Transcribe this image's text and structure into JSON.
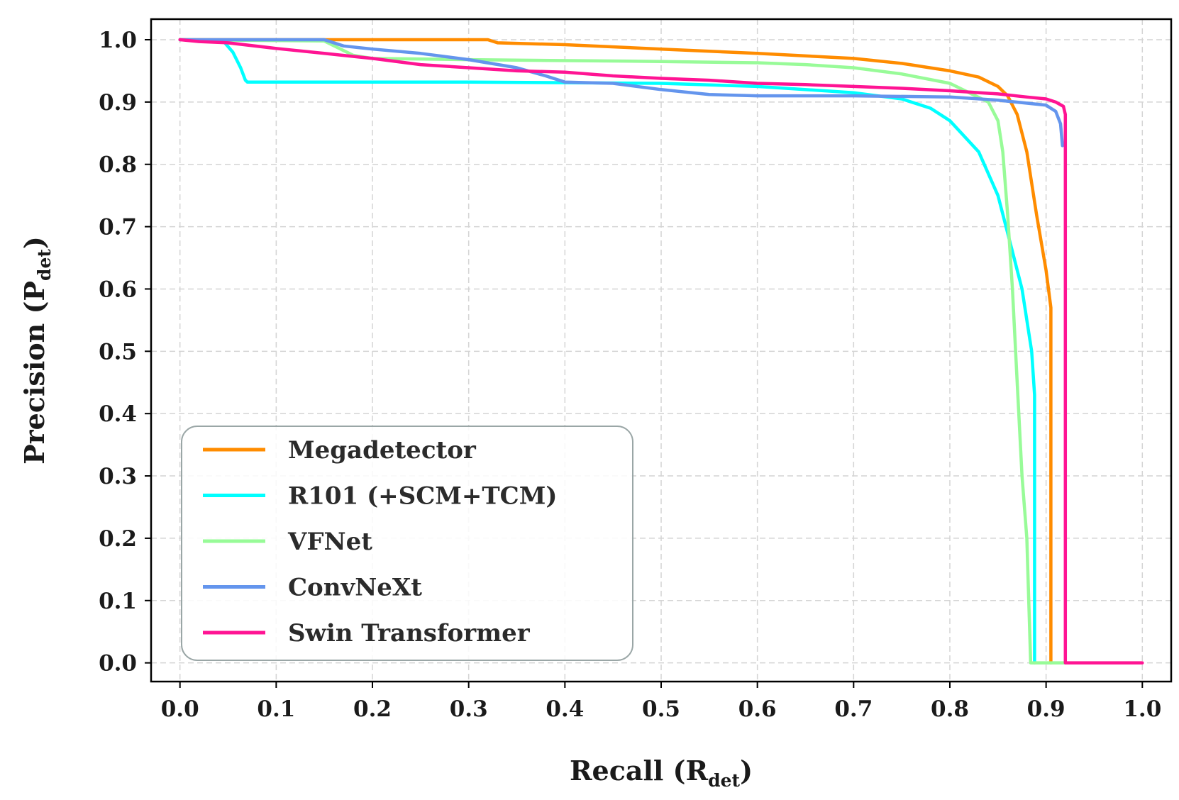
{
  "chart_data": {
    "type": "line",
    "xlabel": "Recall (R",
    "xlabel_sub": "det",
    "xlabel_close": ")",
    "ylabel": "Precision (P",
    "ylabel_sub": "det",
    "ylabel_close": ")",
    "xlim": [
      -0.03,
      1.03
    ],
    "ylim": [
      -0.03,
      1.033
    ],
    "xticks": [
      "0.0",
      "0.1",
      "0.2",
      "0.3",
      "0.4",
      "0.5",
      "0.6",
      "0.7",
      "0.8",
      "0.9",
      "1.0"
    ],
    "yticks": [
      "0.0",
      "0.1",
      "0.2",
      "0.3",
      "0.4",
      "0.5",
      "0.6",
      "0.7",
      "0.8",
      "0.9",
      "1.0"
    ],
    "grid": true,
    "legend_position": "lower-left",
    "series": [
      {
        "name": "Megadetector",
        "color": "#ff8c00",
        "points": [
          [
            0.0,
            1.0
          ],
          [
            0.32,
            1.0
          ],
          [
            0.33,
            0.995
          ],
          [
            0.4,
            0.992
          ],
          [
            0.5,
            0.985
          ],
          [
            0.6,
            0.978
          ],
          [
            0.7,
            0.97
          ],
          [
            0.75,
            0.962
          ],
          [
            0.8,
            0.95
          ],
          [
            0.83,
            0.94
          ],
          [
            0.85,
            0.925
          ],
          [
            0.86,
            0.91
          ],
          [
            0.87,
            0.88
          ],
          [
            0.88,
            0.82
          ],
          [
            0.89,
            0.72
          ],
          [
            0.9,
            0.63
          ],
          [
            0.905,
            0.57
          ],
          [
            0.905,
            0.0
          ]
        ]
      },
      {
        "name": "R101 (+SCM+TCM)",
        "color": "#00ffff",
        "points": [
          [
            0.0,
            1.0
          ],
          [
            0.045,
            0.998
          ],
          [
            0.055,
            0.98
          ],
          [
            0.063,
            0.955
          ],
          [
            0.068,
            0.935
          ],
          [
            0.07,
            0.932
          ],
          [
            0.3,
            0.932
          ],
          [
            0.5,
            0.93
          ],
          [
            0.6,
            0.925
          ],
          [
            0.7,
            0.915
          ],
          [
            0.75,
            0.905
          ],
          [
            0.78,
            0.89
          ],
          [
            0.8,
            0.87
          ],
          [
            0.83,
            0.82
          ],
          [
            0.85,
            0.75
          ],
          [
            0.865,
            0.66
          ],
          [
            0.875,
            0.6
          ],
          [
            0.885,
            0.5
          ],
          [
            0.888,
            0.43
          ],
          [
            0.888,
            0.0
          ]
        ]
      },
      {
        "name": "VFNet",
        "color": "#98fb98",
        "points": [
          [
            0.0,
            1.0
          ],
          [
            0.15,
            0.998
          ],
          [
            0.18,
            0.975
          ],
          [
            0.2,
            0.97
          ],
          [
            0.3,
            0.968
          ],
          [
            0.5,
            0.965
          ],
          [
            0.6,
            0.963
          ],
          [
            0.65,
            0.96
          ],
          [
            0.7,
            0.955
          ],
          [
            0.75,
            0.945
          ],
          [
            0.8,
            0.93
          ],
          [
            0.82,
            0.915
          ],
          [
            0.84,
            0.9
          ],
          [
            0.85,
            0.87
          ],
          [
            0.855,
            0.82
          ],
          [
            0.86,
            0.72
          ],
          [
            0.865,
            0.6
          ],
          [
            0.87,
            0.45
          ],
          [
            0.875,
            0.3
          ],
          [
            0.88,
            0.2
          ],
          [
            0.882,
            0.1
          ],
          [
            0.884,
            0.0
          ],
          [
            0.92,
            0.0
          ]
        ]
      },
      {
        "name": "ConvNeXt",
        "color": "#6495ed",
        "points": [
          [
            0.0,
            1.0
          ],
          [
            0.15,
            1.0
          ],
          [
            0.17,
            0.99
          ],
          [
            0.2,
            0.985
          ],
          [
            0.25,
            0.978
          ],
          [
            0.3,
            0.968
          ],
          [
            0.35,
            0.955
          ],
          [
            0.38,
            0.942
          ],
          [
            0.4,
            0.932
          ],
          [
            0.45,
            0.93
          ],
          [
            0.5,
            0.92
          ],
          [
            0.55,
            0.912
          ],
          [
            0.6,
            0.91
          ],
          [
            0.7,
            0.91
          ],
          [
            0.8,
            0.908
          ],
          [
            0.85,
            0.903
          ],
          [
            0.9,
            0.895
          ],
          [
            0.91,
            0.885
          ],
          [
            0.915,
            0.865
          ],
          [
            0.917,
            0.83
          ]
        ]
      },
      {
        "name": "Swin Transformer",
        "color": "#ff1493",
        "points": [
          [
            0.0,
            1.0
          ],
          [
            0.02,
            0.997
          ],
          [
            0.05,
            0.995
          ],
          [
            0.1,
            0.986
          ],
          [
            0.15,
            0.978
          ],
          [
            0.2,
            0.97
          ],
          [
            0.25,
            0.96
          ],
          [
            0.3,
            0.955
          ],
          [
            0.35,
            0.95
          ],
          [
            0.4,
            0.948
          ],
          [
            0.45,
            0.942
          ],
          [
            0.5,
            0.938
          ],
          [
            0.55,
            0.935
          ],
          [
            0.6,
            0.93
          ],
          [
            0.65,
            0.928
          ],
          [
            0.7,
            0.925
          ],
          [
            0.75,
            0.922
          ],
          [
            0.8,
            0.918
          ],
          [
            0.85,
            0.913
          ],
          [
            0.88,
            0.908
          ],
          [
            0.9,
            0.905
          ],
          [
            0.91,
            0.9
          ],
          [
            0.918,
            0.893
          ],
          [
            0.92,
            0.88
          ],
          [
            0.92,
            0.0
          ],
          [
            1.0,
            0.0
          ]
        ]
      }
    ]
  }
}
